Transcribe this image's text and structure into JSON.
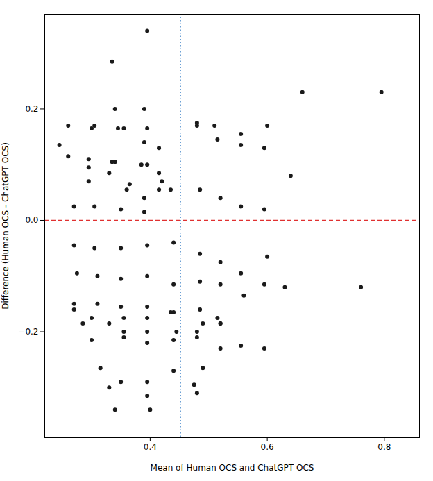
{
  "chart_data": {
    "type": "scatter",
    "xlabel": "Mean of Human OCS and ChatGPT OCS",
    "ylabel": "Difference (Human OCS - ChatGPT OCS)",
    "x": [
      0.245,
      0.335,
      0.395,
      0.34,
      0.39,
      0.395,
      0.305,
      0.355,
      0.39,
      0.415,
      0.295,
      0.34,
      0.365,
      0.415,
      0.295,
      0.33,
      0.36,
      0.39,
      0.415,
      0.26,
      0.3,
      0.345,
      0.395,
      0.48,
      0.51,
      0.555,
      0.6,
      0.26,
      0.295,
      0.335,
      0.385,
      0.42,
      0.48,
      0.515,
      0.555,
      0.595,
      0.66,
      0.27,
      0.305,
      0.35,
      0.39,
      0.435,
      0.485,
      0.52,
      0.555,
      0.595,
      0.64,
      0.27,
      0.305,
      0.35,
      0.395,
      0.44,
      0.485,
      0.52,
      0.555,
      0.6,
      0.275,
      0.31,
      0.35,
      0.395,
      0.44,
      0.485,
      0.52,
      0.56,
      0.595,
      0.27,
      0.31,
      0.35,
      0.395,
      0.435,
      0.485,
      0.515,
      0.27,
      0.3,
      0.355,
      0.395,
      0.44,
      0.49,
      0.52,
      0.63,
      0.285,
      0.33,
      0.355,
      0.395,
      0.445,
      0.48,
      0.52,
      0.595,
      0.76,
      0.3,
      0.355,
      0.395,
      0.44,
      0.48,
      0.52,
      0.555,
      0.315,
      0.35,
      0.395,
      0.44,
      0.49,
      0.33,
      0.395,
      0.475,
      0.34,
      0.4,
      0.48,
      0.795
    ],
    "y": [
      0.135,
      0.285,
      0.34,
      0.2,
      0.2,
      0.165,
      0.17,
      0.165,
      0.14,
      0.13,
      0.095,
      0.105,
      0.065,
      0.085,
      0.07,
      0.085,
      0.055,
      0.04,
      0.055,
      0.17,
      0.165,
      0.165,
      0.1,
      0.17,
      0.17,
      0.155,
      0.17,
      0.115,
      0.11,
      0.105,
      0.1,
      0.07,
      0.175,
      0.145,
      0.135,
      0.13,
      0.23,
      0.025,
      0.025,
      0.02,
      0.015,
      0.055,
      0.055,
      0.04,
      0.025,
      0.02,
      0.08,
      -0.045,
      -0.05,
      -0.05,
      -0.045,
      -0.04,
      -0.06,
      -0.075,
      -0.095,
      -0.065,
      -0.095,
      -0.1,
      -0.105,
      -0.1,
      -0.115,
      -0.11,
      -0.115,
      -0.135,
      -0.115,
      -0.15,
      -0.15,
      -0.155,
      -0.155,
      -0.165,
      -0.16,
      -0.175,
      -0.16,
      -0.175,
      -0.175,
      -0.175,
      -0.165,
      -0.185,
      -0.185,
      -0.12,
      -0.185,
      -0.185,
      -0.2,
      -0.2,
      -0.2,
      -0.2,
      -0.185,
      -0.23,
      -0.12,
      -0.215,
      -0.21,
      -0.22,
      -0.215,
      -0.21,
      -0.23,
      -0.225,
      -0.265,
      -0.29,
      -0.29,
      -0.27,
      -0.265,
      -0.3,
      -0.315,
      -0.295,
      -0.34,
      -0.34,
      -0.31,
      0.23
    ],
    "color": "#1a1a1a",
    "hline": {
      "value": 0.0,
      "color": "#e03030",
      "line_style": "dashed"
    },
    "vline": {
      "value": 0.452,
      "color": "#6b9fd4",
      "line_style": "dotted"
    },
    "xlim": [
      0.22,
      0.86
    ],
    "ylim": [
      -0.39,
      0.37
    ],
    "xticks": [
      0.4,
      0.6,
      0.8
    ],
    "yticks": [
      -0.2,
      {
        "value": 0,
        "label": "0.0"
      },
      0.2
    ],
    "grid": false
  }
}
